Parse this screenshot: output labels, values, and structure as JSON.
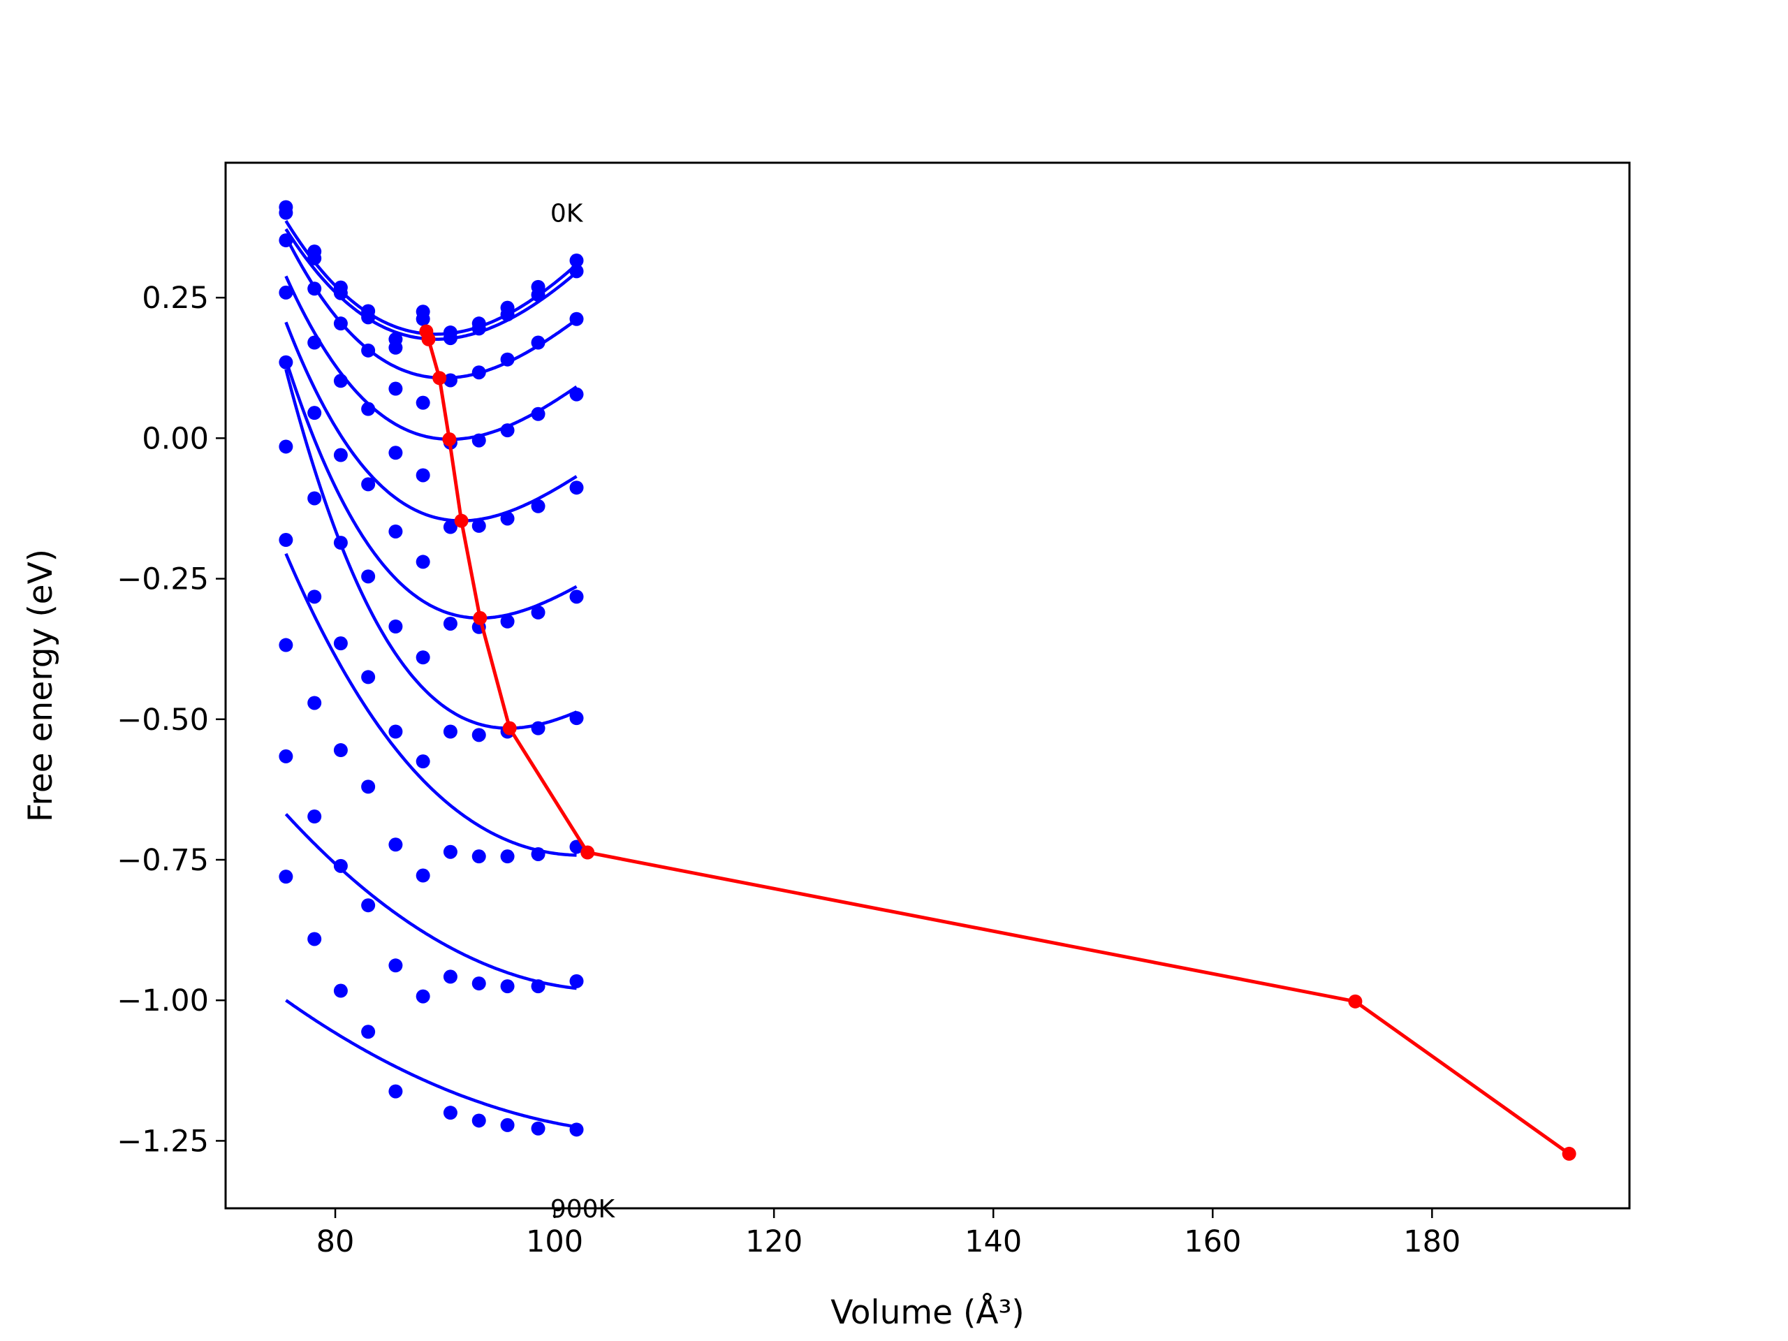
{
  "chart_data": {
    "type": "scatter",
    "title": "",
    "xlabel": "Volume (Å³)",
    "ylabel": "Free energy (eV)",
    "xlim": [
      70,
      198
    ],
    "ylim": [
      -1.37,
      0.49
    ],
    "xticks": [
      80,
      100,
      120,
      140,
      160,
      180
    ],
    "xtick_labels": [
      "80",
      "100",
      "120",
      "140",
      "160",
      "180"
    ],
    "yticks": [
      0.25,
      0.0,
      -0.25,
      -0.5,
      -0.75,
      -1.0,
      -1.25
    ],
    "ytick_labels": [
      "0.25",
      "0.00",
      "−0.25",
      "−0.50",
      "−0.75",
      "−1.00",
      "−1.25"
    ],
    "grid": false,
    "annotations": [
      {
        "text": "0K",
        "x": 99.6,
        "y": 0.385
      },
      {
        "text": "900K",
        "x": 99.6,
        "y": -1.37
      }
    ],
    "volumes": [
      75.5,
      78.1,
      80.5,
      83.0,
      85.5,
      88.0,
      90.5,
      93.1,
      95.7,
      98.5,
      102.0
    ],
    "isotherms": [
      {
        "points": [
          0.411,
          0.332,
          0.268,
          0.226,
          0.176,
          0.225,
          0.188,
          0.204,
          0.232,
          0.269,
          0.316
        ],
        "fit": {
          "a": 0.185,
          "v0": 89.2,
          "c": 0.00091,
          "d": -1.2e-05
        }
      },
      {
        "points": [
          0.401,
          0.32,
          0.258,
          0.215,
          0.161,
          0.212,
          0.178,
          0.195,
          0.22,
          0.255,
          0.297
        ],
        "fit": {
          "a": 0.176,
          "v0": 89.2,
          "c": 0.00088,
          "d": -1.2e-05
        }
      },
      {
        "points": [
          0.352,
          0.266,
          0.204,
          0.156,
          0.088,
          0.063,
          0.103,
          0.117,
          0.14,
          0.17,
          0.212
        ],
        "fit": {
          "a": 0.107,
          "v0": 89.9,
          "c": 0.00094,
          "d": -1.9e-05
        }
      },
      {
        "points": [
          0.259,
          0.17,
          0.102,
          0.052,
          -0.026,
          -0.066,
          -0.008,
          -0.004,
          0.014,
          0.043,
          0.078
        ],
        "fit": {
          "a": -0.002,
          "v0": 90.5,
          "c": 0.00096,
          "d": -2.2e-05
        }
      },
      {
        "points": [
          0.135,
          0.045,
          -0.03,
          -0.082,
          -0.166,
          -0.22,
          -0.158,
          -0.156,
          -0.143,
          -0.121,
          -0.088
        ],
        "fit": {
          "a": -0.147,
          "v0": 91.5,
          "c": 0.00098,
          "d": -2.5e-05
        }
      },
      {
        "points": [
          -0.015,
          -0.107,
          -0.186,
          -0.246,
          -0.335,
          -0.39,
          -0.33,
          -0.336,
          -0.326,
          -0.31,
          -0.282
        ],
        "fit": {
          "a": -0.32,
          "v0": 93.2,
          "c": 0.00097,
          "d": -2.8e-05
        }
      },
      {
        "points": [
          -0.181,
          -0.282,
          -0.365,
          -0.425,
          -0.522,
          -0.575,
          -0.522,
          -0.528,
          -0.522,
          -0.516,
          -0.498
        ],
        "fit": {
          "a": -0.516,
          "v0": 95.8,
          "c": 0.00094,
          "d": -3e-05
        }
      },
      {
        "points": [
          -0.368,
          -0.471,
          -0.555,
          -0.62,
          -0.723,
          -0.778,
          -0.736,
          -0.744,
          -0.744,
          -0.74,
          -0.727
        ],
        "fit": {
          "a": -0.742,
          "v0": 102.5,
          "c": 0.00052,
          "d": -8e-06
        }
      },
      {
        "points": [
          -0.566,
          -0.673,
          -0.761,
          -0.831,
          -0.938,
          -0.993,
          -0.958,
          -0.97,
          -0.975,
          -0.975,
          -0.966
        ],
        "fit": {
          "a": -0.982,
          "v0": 105.0,
          "c": 0.00036,
          "d": 0.0
        }
      },
      {
        "points": [
          -0.78,
          -0.891,
          -0.983,
          -1.056,
          -1.162,
          null,
          -1.2,
          -1.214,
          -1.222,
          -1.228,
          -1.23
        ],
        "fit": {
          "a": -1.238,
          "v0": 110.0,
          "c": 0.0002,
          "d": 0.0
        }
      }
    ],
    "minima_series": {
      "color": "#ff0000",
      "points": [
        [
          88.3,
          0.19
        ],
        [
          88.5,
          0.176
        ],
        [
          89.5,
          0.107
        ],
        [
          90.4,
          -0.002
        ],
        [
          91.5,
          -0.147
        ],
        [
          93.2,
          -0.32
        ],
        [
          95.9,
          -0.516
        ],
        [
          103.0,
          -0.737
        ],
        [
          173.0,
          -1.002
        ],
        [
          192.5,
          -1.273
        ]
      ]
    },
    "colors": {
      "isotherm": "#0000ff",
      "minima": "#ff0000",
      "axes": "#000000"
    }
  }
}
